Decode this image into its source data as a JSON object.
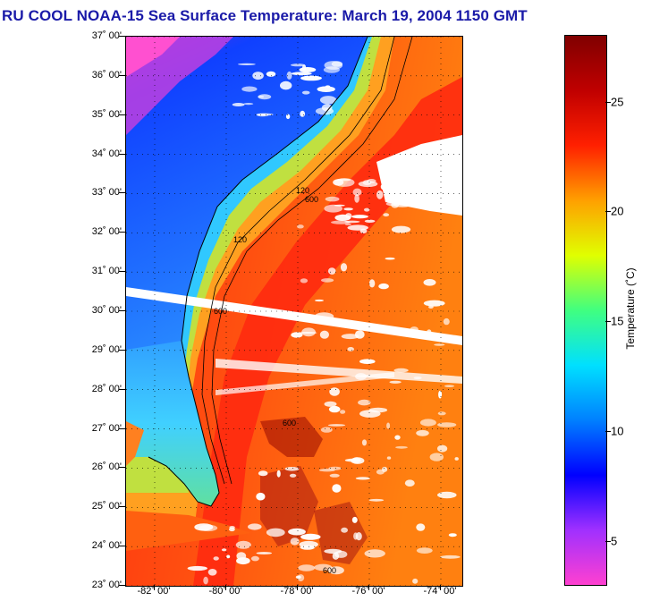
{
  "title": "RU COOL  NOAA-15  Sea Surface Temperature:  March 19, 2004 1150 GMT",
  "map": {
    "lat_labels": [
      {
        "label": "37˚ 00'",
        "lat": 37
      },
      {
        "label": "36˚ 00'",
        "lat": 36
      },
      {
        "label": "35˚ 00'",
        "lat": 35
      },
      {
        "label": "34˚ 00'",
        "lat": 34
      },
      {
        "label": "33˚ 00'",
        "lat": 33
      },
      {
        "label": "32˚ 00'",
        "lat": 32
      },
      {
        "label": "31˚ 00'",
        "lat": 31
      },
      {
        "label": "30˚ 00'",
        "lat": 30
      },
      {
        "label": "29˚ 00'",
        "lat": 29
      },
      {
        "label": "28˚ 00'",
        "lat": 28
      },
      {
        "label": "27˚ 00'",
        "lat": 27
      },
      {
        "label": "26˚ 00'",
        "lat": 26
      },
      {
        "label": "25˚ 00'",
        "lat": 25
      },
      {
        "label": "24˚ 00'",
        "lat": 24
      },
      {
        "label": "23˚ 00'",
        "lat": 23
      }
    ],
    "lon_labels": [
      {
        "label": "-82˚ 00'",
        "lon": -82
      },
      {
        "label": "-80˚ 00'",
        "lon": -80
      },
      {
        "label": "-78˚ 00'",
        "lon": -78
      },
      {
        "label": "-76˚ 00'",
        "lon": -76
      },
      {
        "label": "-74˚ 00'",
        "lon": -74
      }
    ],
    "lat_range": [
      23,
      37
    ],
    "lon_range": [
      -82.8,
      -73.4
    ],
    "isobath_labels": [
      "120",
      "600"
    ],
    "colors": {
      "land_cold": "#e040e0",
      "land_cool": "#2060ff",
      "shelf": "#30c0ff",
      "shelf_warm": "#c0e040",
      "gulf_stream": "#ff2010",
      "offshore": "#ff7010",
      "cloud": "#ffffff"
    }
  },
  "colorbar": {
    "label": "Temperature (˚C)",
    "min": 3,
    "max": 28,
    "ticks": [
      {
        "label": "25",
        "value": 25
      },
      {
        "label": "20",
        "value": 20
      },
      {
        "label": "15",
        "value": 15
      },
      {
        "label": "10",
        "value": 10
      },
      {
        "label": "5",
        "value": 5
      }
    ],
    "stops": [
      "#ff40d0",
      "#a030ff",
      "#0000ff",
      "#0080ff",
      "#00e0ff",
      "#40ff80",
      "#e0ff00",
      "#ffa000",
      "#ff2000",
      "#c00000",
      "#800000"
    ]
  }
}
